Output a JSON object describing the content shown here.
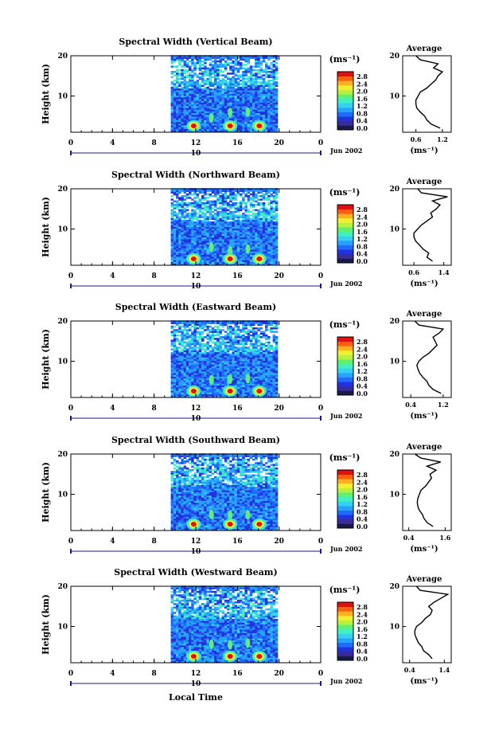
{
  "figure": {
    "xlabel": "Local Time",
    "ylabel": "Height (km)",
    "unit_label": "(ms⁻¹)",
    "profile_title": "Average",
    "profile_unit": "(ms⁻¹)",
    "date_label": "Jun 2002",
    "day_label": "10",
    "colors": {
      "scale": [
        "#1a1a4a",
        "#3a2b9a",
        "#2233dd",
        "#1f6bff",
        "#27a3ff",
        "#36d0f0",
        "#3ff0c0",
        "#5ff070",
        "#b8f040",
        "#f0f030",
        "#ffb020",
        "#ff6010",
        "#e01010"
      ],
      "background": "#ffffff",
      "line": "#000000"
    }
  },
  "chart_data": [
    {
      "type": "heatmap",
      "title": "Spectral Width (Vertical Beam)",
      "x_ticks": [
        "0",
        "4",
        "8",
        "12",
        "16",
        "20",
        "0"
      ],
      "x_range": [
        0,
        24
      ],
      "data_x_range": [
        9.6,
        19.8
      ],
      "y_ticks": [
        "20",
        "10"
      ],
      "y_range": [
        1,
        20
      ],
      "colorbar_ticks": [
        "2.8",
        "2.4",
        "2.0",
        "1.6",
        "1.2",
        "0.8",
        "0.4",
        "0.0"
      ],
      "hotspots_x": [
        11.8,
        15.3,
        18.1
      ],
      "profile": {
        "x_ticks": [
          "0.6",
          "1.2"
        ],
        "x_range": [
          0.3,
          1.4
        ],
        "heights": [
          2,
          3,
          4,
          5,
          6,
          7,
          8,
          9,
          10,
          11,
          12,
          13,
          14,
          15,
          16,
          17,
          18,
          19,
          20
        ],
        "values": [
          1.15,
          0.95,
          0.85,
          0.8,
          0.7,
          0.62,
          0.6,
          0.6,
          0.65,
          0.7,
          0.85,
          0.95,
          1.05,
          1.1,
          1.2,
          1.0,
          1.1,
          0.7,
          0.6
        ]
      }
    },
    {
      "type": "heatmap",
      "title": "Spectral Width (Northward Beam)",
      "x_ticks": [
        "0",
        "4",
        "8",
        "12",
        "16",
        "20",
        "0"
      ],
      "x_range": [
        0,
        24
      ],
      "data_x_range": [
        9.6,
        19.8
      ],
      "y_ticks": [
        "20",
        "10"
      ],
      "y_range": [
        1,
        20
      ],
      "colorbar_ticks": [
        "2.8",
        "2.4",
        "2.0",
        "1.6",
        "1.2",
        "0.8",
        "0.4",
        "0.0"
      ],
      "hotspots_x": [
        11.8,
        15.3,
        18.1
      ],
      "profile": {
        "x_ticks": [
          "0.6",
          "1.4"
        ],
        "x_range": [
          0.3,
          1.6
        ],
        "heights": [
          2,
          3,
          4,
          5,
          6,
          7,
          8,
          9,
          10,
          11,
          12,
          13,
          14,
          15,
          16,
          17,
          18,
          19,
          20
        ],
        "values": [
          1.1,
          0.95,
          1.0,
          0.85,
          0.75,
          0.65,
          0.6,
          0.6,
          0.7,
          0.8,
          0.95,
          1.1,
          1.05,
          1.2,
          1.3,
          1.1,
          1.5,
          0.8,
          0.7
        ]
      }
    },
    {
      "type": "heatmap",
      "title": "Spectral Width (Eastward Beam)",
      "x_ticks": [
        "0",
        "4",
        "8",
        "12",
        "16",
        "20",
        "0"
      ],
      "x_range": [
        0,
        24
      ],
      "data_x_range": [
        9.6,
        19.8
      ],
      "y_ticks": [
        "20",
        "10"
      ],
      "y_range": [
        1,
        20
      ],
      "colorbar_ticks": [
        "2.8",
        "2.4",
        "2.0",
        "1.6",
        "1.2",
        "0.8",
        "0.4",
        "0.0"
      ],
      "hotspots_x": [
        11.8,
        15.3,
        18.1
      ],
      "profile": {
        "x_ticks": [
          "0.4",
          "1.2"
        ],
        "x_range": [
          0.2,
          1.4
        ],
        "heights": [
          2,
          3,
          4,
          5,
          6,
          7,
          8,
          9,
          10,
          11,
          12,
          13,
          14,
          15,
          16,
          17,
          18,
          19,
          20
        ],
        "values": [
          1.15,
          0.95,
          0.85,
          0.8,
          0.7,
          0.62,
          0.58,
          0.55,
          0.6,
          0.7,
          0.85,
          0.95,
          1.05,
          1.0,
          0.95,
          1.1,
          1.2,
          0.6,
          0.5
        ]
      }
    },
    {
      "type": "heatmap",
      "title": "Spectral Width (Southward Beam)",
      "x_ticks": [
        "0",
        "4",
        "8",
        "12",
        "16",
        "20",
        "0"
      ],
      "x_range": [
        0,
        24
      ],
      "data_x_range": [
        9.6,
        19.8
      ],
      "y_ticks": [
        "20",
        "10"
      ],
      "y_range": [
        1,
        20
      ],
      "colorbar_ticks": [
        "2.8",
        "2.4",
        "2.0",
        "1.6",
        "1.2",
        "0.8",
        "0.4",
        "0.0"
      ],
      "hotspots_x": [
        11.8,
        15.3,
        18.1
      ],
      "profile": {
        "x_ticks": [
          "0.4",
          "1.6"
        ],
        "x_range": [
          0.2,
          1.8
        ],
        "heights": [
          2,
          3,
          4,
          5,
          6,
          7,
          8,
          9,
          10,
          11,
          12,
          13,
          14,
          15,
          16,
          17,
          18,
          19,
          20
        ],
        "values": [
          1.2,
          1.0,
          0.9,
          0.85,
          0.75,
          0.7,
          0.68,
          0.7,
          0.75,
          0.8,
          0.95,
          1.05,
          1.15,
          1.1,
          1.3,
          1.0,
          1.45,
          0.8,
          0.6
        ]
      }
    },
    {
      "type": "heatmap",
      "title": "Spectral Width (Westward Beam)",
      "x_ticks": [
        "0",
        "4",
        "8",
        "12",
        "16",
        "20",
        "0"
      ],
      "x_range": [
        0,
        24
      ],
      "data_x_range": [
        9.6,
        19.8
      ],
      "y_ticks": [
        "20",
        "10"
      ],
      "y_range": [
        1,
        20
      ],
      "colorbar_ticks": [
        "2.8",
        "2.4",
        "2.0",
        "1.6",
        "1.2",
        "0.8",
        "0.4",
        "0.0"
      ],
      "hotspots_x": [
        11.8,
        15.3,
        18.1
      ],
      "profile": {
        "x_ticks": [
          "0.4",
          "1.4"
        ],
        "x_range": [
          0.2,
          1.6
        ],
        "heights": [
          2,
          3,
          4,
          5,
          6,
          7,
          8,
          9,
          10,
          11,
          12,
          13,
          14,
          15,
          16,
          17,
          18,
          19,
          20
        ],
        "values": [
          1.05,
          0.95,
          0.8,
          0.75,
          0.65,
          0.6,
          0.55,
          0.55,
          0.6,
          0.75,
          0.85,
          1.0,
          1.05,
          0.95,
          1.1,
          1.3,
          1.5,
          0.7,
          0.6
        ]
      }
    }
  ]
}
